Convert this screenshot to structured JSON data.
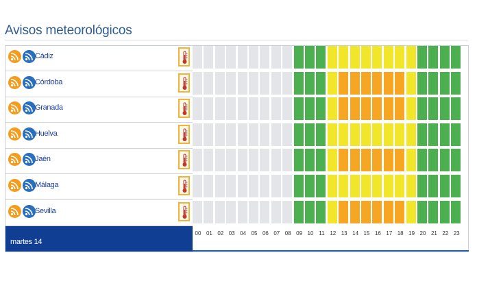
{
  "title": "Avisos meteorológicos",
  "provinces": [
    {
      "name": "Cádiz",
      "hazard_icon": "thermometer-icon"
    },
    {
      "name": "Córdoba",
      "hazard_icon": "thermometer-icon"
    },
    {
      "name": "Granada",
      "hazard_icon": "thermometer-icon"
    },
    {
      "name": "Huelva",
      "hazard_icon": "thermometer-icon"
    },
    {
      "name": "Jaén",
      "hazard_icon": "thermometer-icon"
    },
    {
      "name": "Málaga",
      "hazard_icon": "thermometer-icon"
    },
    {
      "name": "Sevilla",
      "hazard_icon": "thermometer-icon"
    }
  ],
  "hours": [
    "00",
    "01",
    "02",
    "03",
    "04",
    "05",
    "06",
    "07",
    "08",
    "09",
    "10",
    "11",
    "12",
    "13",
    "14",
    "15",
    "16",
    "17",
    "18",
    "19",
    "20",
    "21",
    "22",
    "23"
  ],
  "day_label": "martes 14",
  "levels": {
    "none": "#e3e5e8",
    "green": "#4caf50",
    "yellow": "#f2e62a",
    "orange": "#f7a623"
  },
  "warnings": [
    [
      "none",
      "none",
      "none",
      "none",
      "none",
      "none",
      "none",
      "none",
      "none",
      "green",
      "green",
      "green",
      "yellow",
      "yellow",
      "yellow",
      "yellow",
      "yellow",
      "yellow",
      "yellow",
      "yellow",
      "green",
      "green",
      "green",
      "green"
    ],
    [
      "none",
      "none",
      "none",
      "none",
      "none",
      "none",
      "none",
      "none",
      "none",
      "green",
      "green",
      "green",
      "yellow",
      "orange",
      "orange",
      "orange",
      "orange",
      "orange",
      "orange",
      "yellow",
      "green",
      "green",
      "green",
      "green"
    ],
    [
      "none",
      "none",
      "none",
      "none",
      "none",
      "none",
      "none",
      "none",
      "none",
      "green",
      "green",
      "green",
      "yellow",
      "orange",
      "orange",
      "orange",
      "orange",
      "orange",
      "orange",
      "yellow",
      "green",
      "green",
      "green",
      "green"
    ],
    [
      "none",
      "none",
      "none",
      "none",
      "none",
      "none",
      "none",
      "none",
      "none",
      "green",
      "green",
      "green",
      "yellow",
      "yellow",
      "yellow",
      "yellow",
      "yellow",
      "yellow",
      "yellow",
      "yellow",
      "green",
      "green",
      "green",
      "green"
    ],
    [
      "none",
      "none",
      "none",
      "none",
      "none",
      "none",
      "none",
      "none",
      "none",
      "green",
      "green",
      "green",
      "yellow",
      "orange",
      "orange",
      "orange",
      "orange",
      "orange",
      "orange",
      "yellow",
      "green",
      "green",
      "green",
      "green"
    ],
    [
      "none",
      "none",
      "none",
      "none",
      "none",
      "none",
      "none",
      "none",
      "none",
      "green",
      "green",
      "green",
      "yellow",
      "yellow",
      "yellow",
      "yellow",
      "yellow",
      "yellow",
      "yellow",
      "yellow",
      "green",
      "green",
      "green",
      "green"
    ],
    [
      "none",
      "none",
      "none",
      "none",
      "none",
      "none",
      "none",
      "none",
      "none",
      "green",
      "green",
      "green",
      "yellow",
      "orange",
      "orange",
      "orange",
      "orange",
      "orange",
      "orange",
      "yellow",
      "green",
      "green",
      "green",
      "green"
    ]
  ]
}
